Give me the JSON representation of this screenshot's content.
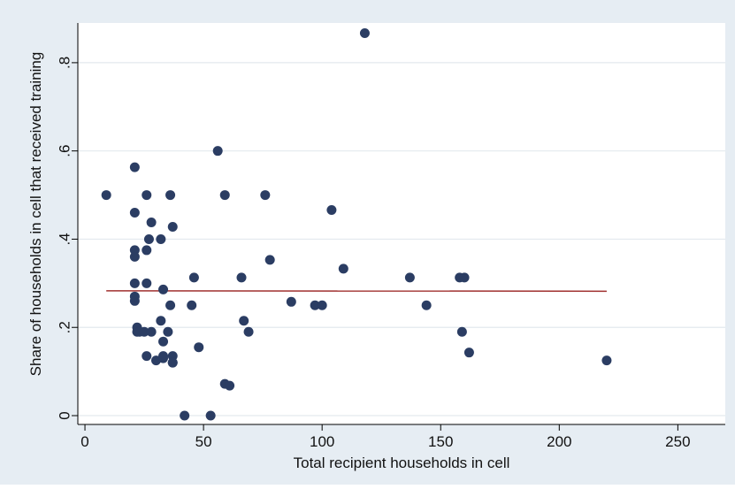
{
  "chart_data": {
    "type": "scatter",
    "title": "",
    "xlabel": "Total recipient households in cell",
    "ylabel": "Share of households in cell that received training",
    "xlim": [
      -3,
      270
    ],
    "ylim": [
      -0.02,
      0.89
    ],
    "x_ticks": [
      0,
      50,
      100,
      150,
      200,
      250
    ],
    "x_tick_labels": [
      "0",
      "50",
      "100",
      "150",
      "200",
      "250"
    ],
    "y_ticks": [
      0,
      0.2,
      0.4,
      0.6,
      0.8
    ],
    "y_tick_labels": [
      "0",
      ".2",
      ".4",
      ".6",
      ".8"
    ],
    "grid": "horizontal",
    "colors": {
      "background": "#e6edf3",
      "plot_background": "#ffffff",
      "marker": "#2b3d63",
      "fit_line": "#a0302f",
      "gridline": "#e3e9ee"
    },
    "series": [
      {
        "kind": "points",
        "x": [
          9,
          21,
          21,
          21,
          21,
          21,
          21,
          21,
          22,
          22,
          23,
          25,
          26,
          26,
          26,
          26,
          27,
          28,
          28,
          30,
          32,
          32,
          33,
          33,
          33,
          33,
          35,
          36,
          36,
          37,
          37,
          37,
          37,
          42,
          45,
          46,
          48,
          53,
          56,
          59,
          59,
          61,
          66,
          67,
          69,
          76,
          78,
          87,
          97,
          100,
          104,
          109,
          118,
          137,
          144,
          158,
          159,
          160,
          162,
          220
        ],
        "y": [
          0.5,
          0.563,
          0.46,
          0.375,
          0.36,
          0.3,
          0.26,
          0.27,
          0.2,
          0.19,
          0.19,
          0.19,
          0.5,
          0.375,
          0.3,
          0.135,
          0.4,
          0.438,
          0.19,
          0.125,
          0.4,
          0.215,
          0.286,
          0.168,
          0.135,
          0.13,
          0.19,
          0.5,
          0.25,
          0.428,
          0.135,
          0.12,
          0.12,
          0.0,
          0.25,
          0.313,
          0.155,
          0.0,
          0.6,
          0.5,
          0.072,
          0.068,
          0.313,
          0.215,
          0.19,
          0.5,
          0.353,
          0.258,
          0.25,
          0.25,
          0.466,
          0.333,
          0.867,
          0.313,
          0.25,
          0.313,
          0.19,
          0.313,
          0.143,
          0.125
        ]
      },
      {
        "kind": "line",
        "x": [
          9,
          220
        ],
        "y": [
          0.283,
          0.282
        ]
      }
    ]
  }
}
